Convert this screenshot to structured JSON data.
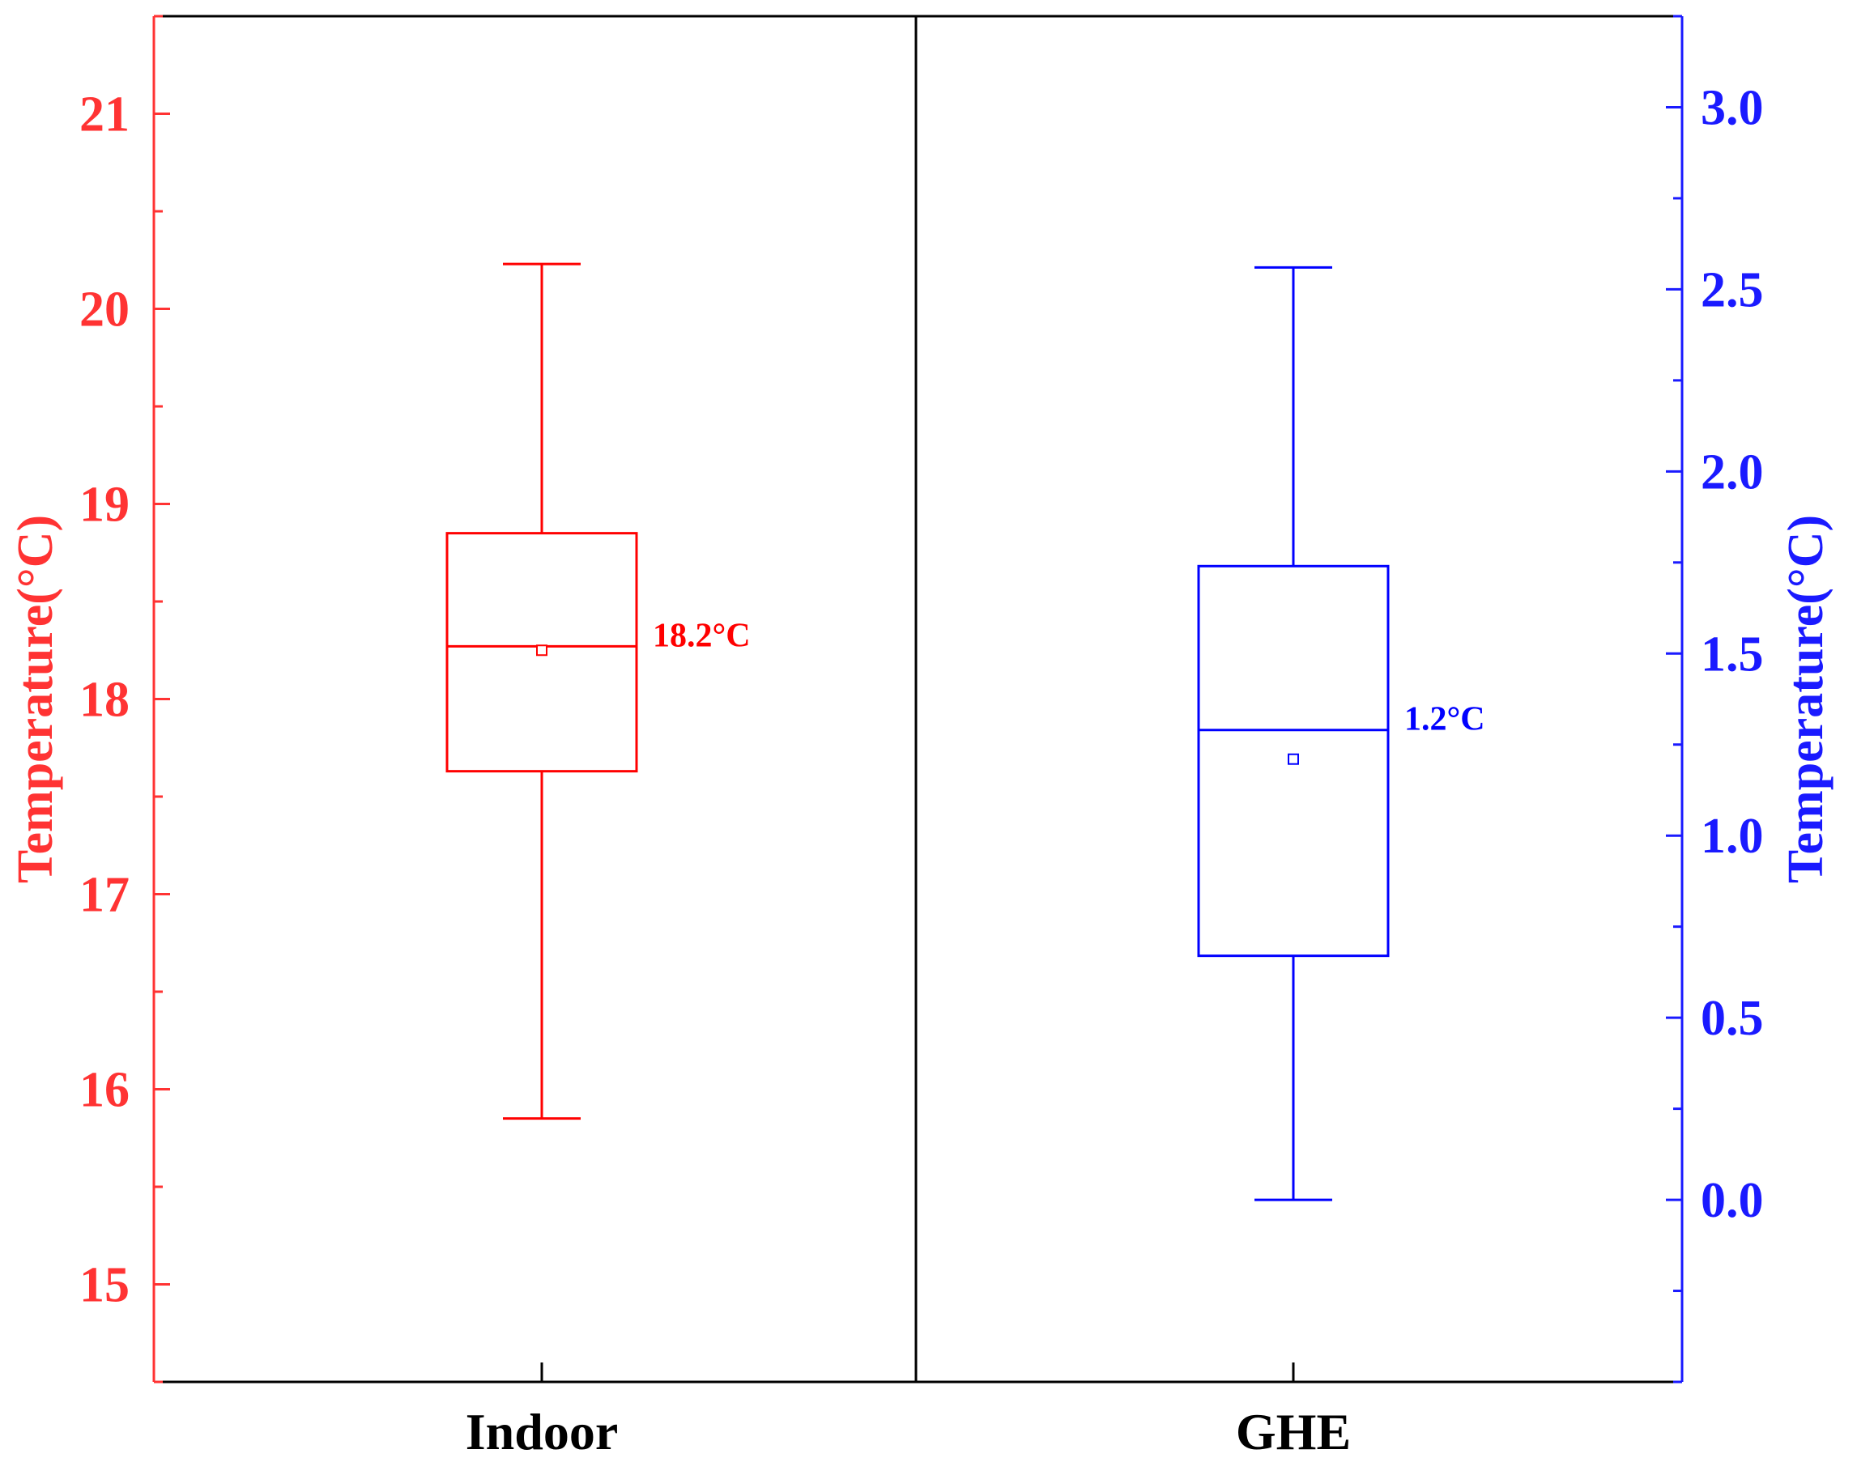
{
  "chart_data": {
    "type": "box",
    "categories": [
      "Indoor",
      "GHE"
    ],
    "left_axis": {
      "title": "Temperature(°C)",
      "color": "#ff3333",
      "range": [
        14.5,
        21.5
      ],
      "ticks": [
        15,
        16,
        17,
        18,
        19,
        20,
        21
      ],
      "tick_labels": [
        "15",
        "16",
        "17",
        "18",
        "19",
        "20",
        "21"
      ]
    },
    "right_axis": {
      "title": "Temperature(°C)",
      "color": "#1a1aff",
      "range": [
        -0.5,
        3.25
      ],
      "ticks": [
        0.0,
        0.5,
        1.0,
        1.5,
        2.0,
        2.5,
        3.0
      ],
      "tick_labels": [
        "0.0",
        "0.5",
        "1.0",
        "1.5",
        "2.0",
        "2.5",
        "3.0"
      ]
    },
    "series": [
      {
        "category": "Indoor",
        "axis": "left",
        "color": "#ff0000",
        "whisker_low": 15.85,
        "q1": 17.63,
        "median": 18.27,
        "q3": 18.85,
        "whisker_high": 20.23,
        "mean": 18.25,
        "annotation": "18.2°C"
      },
      {
        "category": "GHE",
        "axis": "right",
        "color": "#0000ff",
        "whisker_low": 0.0,
        "q1": 0.67,
        "median": 1.29,
        "q3": 1.74,
        "whisker_high": 2.56,
        "mean": 1.21,
        "annotation": "1.2°C"
      }
    ],
    "divider_between_categories": true,
    "legend": "none",
    "grid": false
  }
}
